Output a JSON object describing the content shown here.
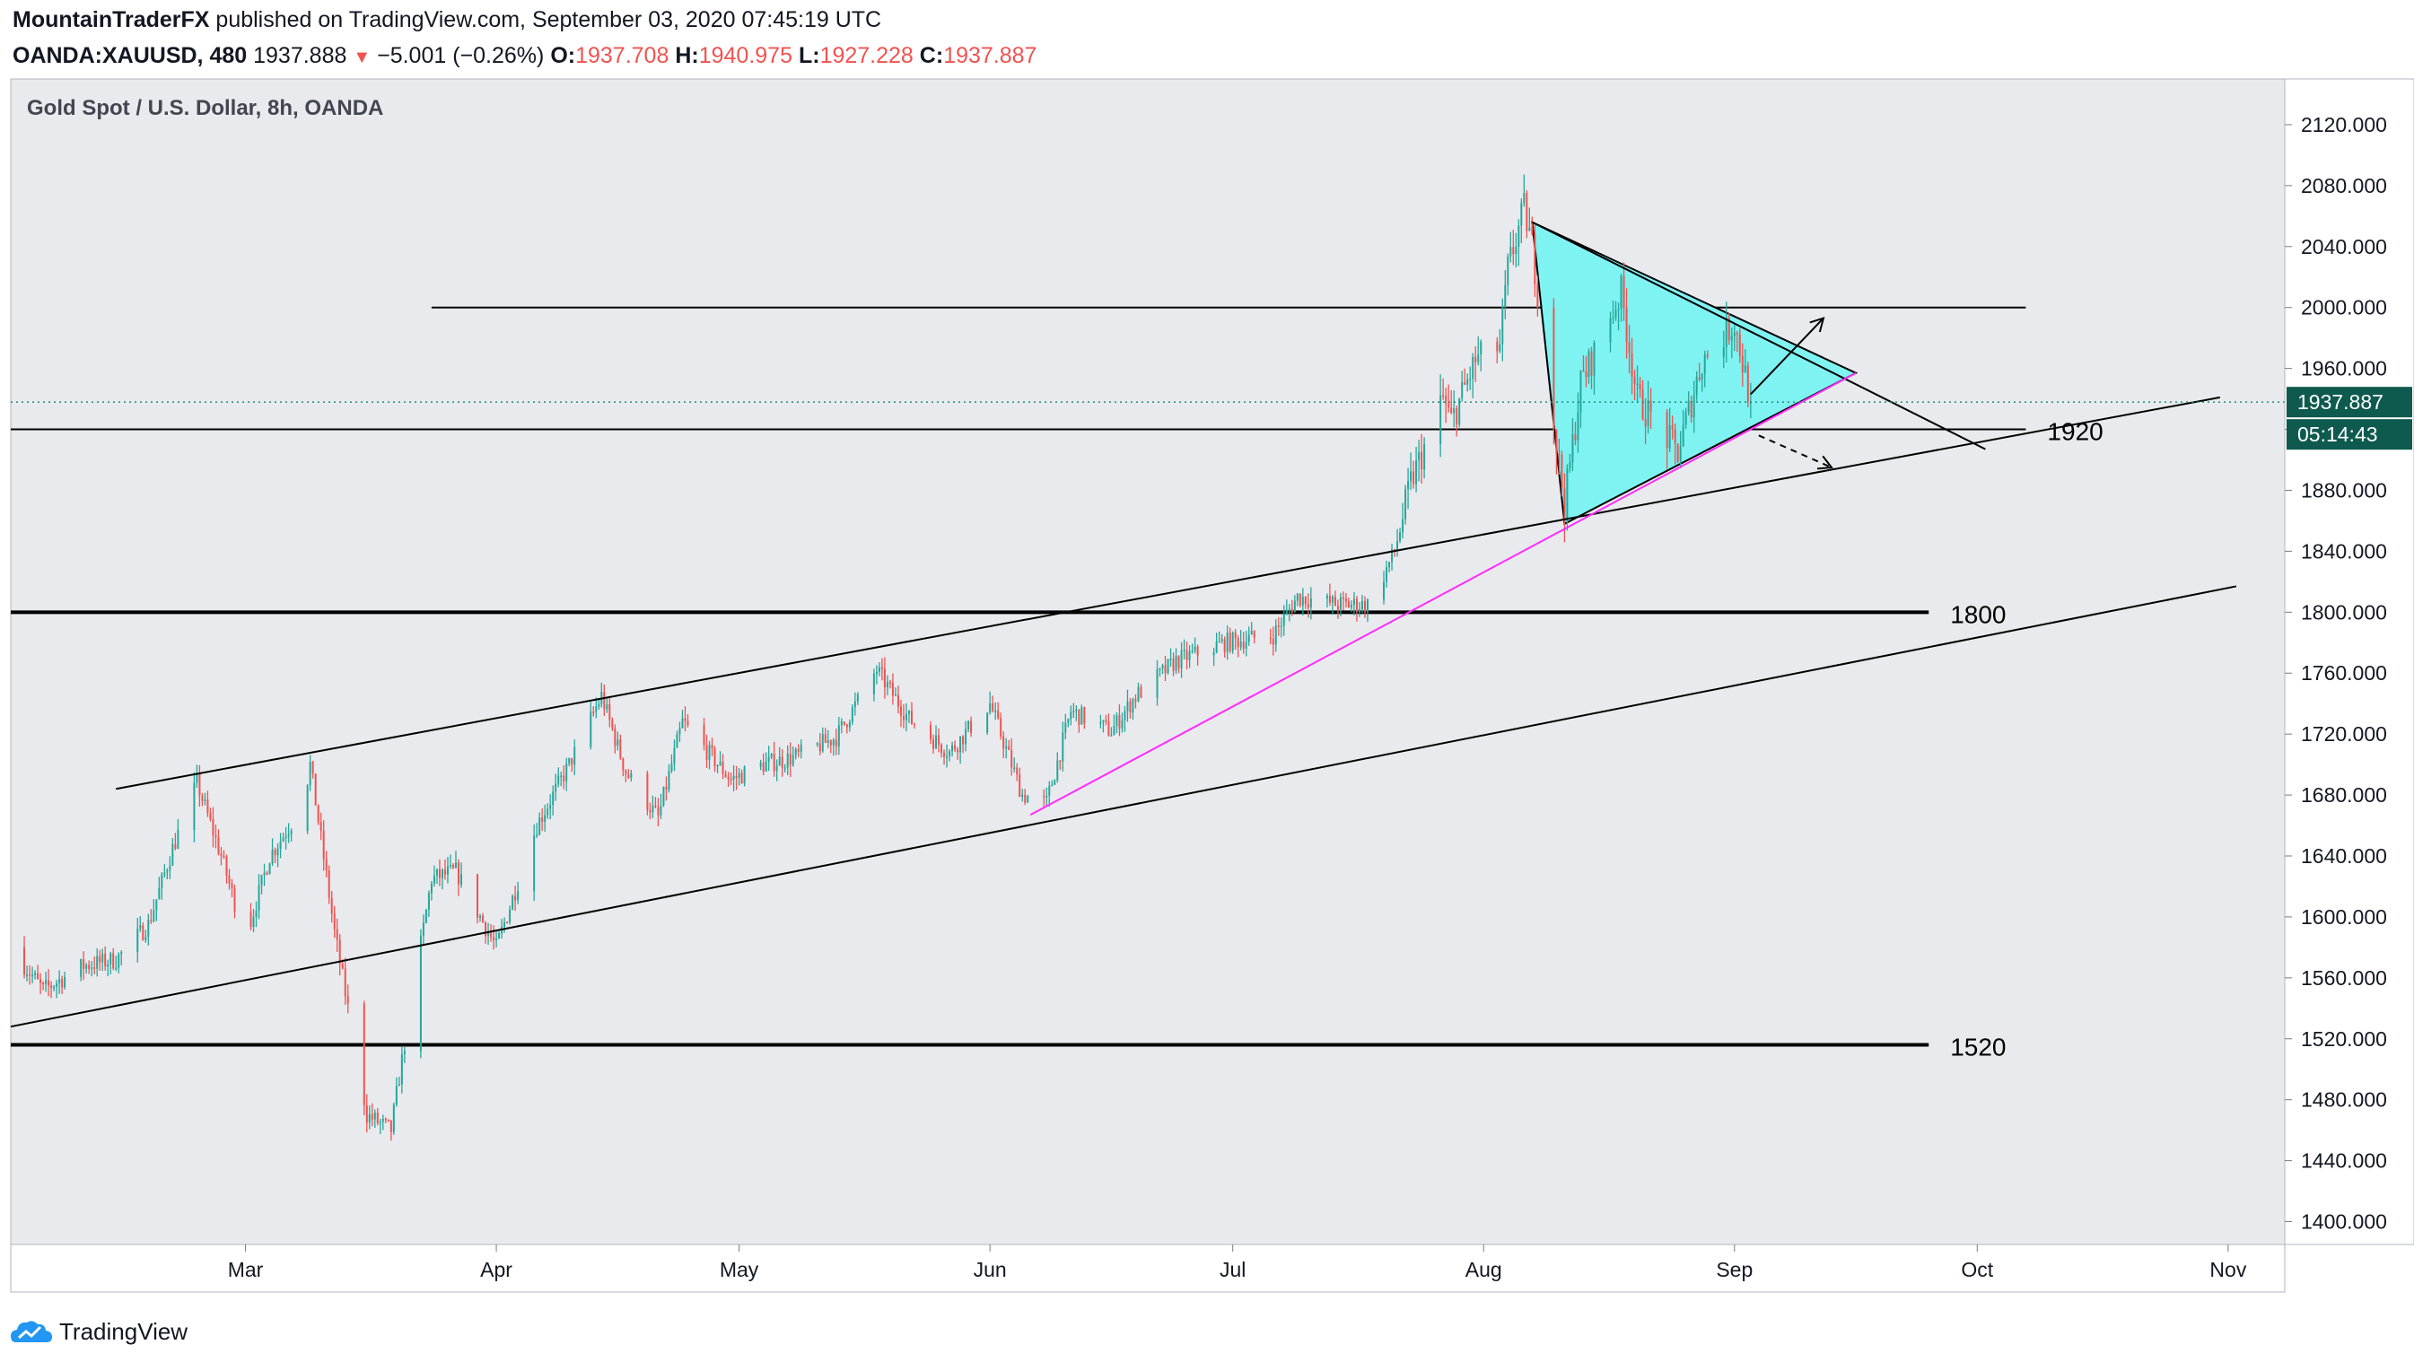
{
  "header": {
    "author": "MountainTraderFX",
    "published": " published on TradingView.com, September 03, 2020 07:45:19 UTC",
    "symbol": "OANDA:XAUUSD, 480",
    "price": "1937.888",
    "change": "−5.001 (−0.26%)",
    "o_label": "O:",
    "o_value": "1937.708",
    "h_label": "H:",
    "h_value": "1940.975",
    "l_label": "L:",
    "l_value": "1927.228",
    "c_label": "C:",
    "c_value": "1937.887"
  },
  "footer": {
    "brand": "TradingView"
  },
  "colors": {
    "up": "#26a69a",
    "down": "#ef5350",
    "pane": "#e9eaee",
    "wedge_fill": "#7ff3f2",
    "support_line": "#ff2bff",
    "price_tag": "#0e5a4e",
    "dotted_price": "#1f8a78"
  },
  "chart_data": {
    "type": "candlestick",
    "title": "Gold Spot / U.S. Dollar, 8h, OANDA",
    "y_axis": {
      "range": [
        1385,
        2150
      ],
      "ticks": [
        "2120.000",
        "2080.000",
        "2040.000",
        "2000.000",
        "1960.000",
        "1920.000",
        "1880.000",
        "1840.000",
        "1800.000",
        "1760.000",
        "1720.000",
        "1680.000",
        "1640.000",
        "1600.000",
        "1560.000",
        "1520.000",
        "1480.000",
        "1440.000",
        "1400.000"
      ]
    },
    "x_axis": {
      "range": [
        "2020-02-01",
        "2020-11-08"
      ],
      "ticks": [
        {
          "label": "Mar",
          "date": "2020-03-01"
        },
        {
          "label": "Apr",
          "date": "2020-04-01"
        },
        {
          "label": "May",
          "date": "2020-05-01"
        },
        {
          "label": "Jun",
          "date": "2020-06-01"
        },
        {
          "label": "Jul",
          "date": "2020-07-01"
        },
        {
          "label": "Aug",
          "date": "2020-08-01"
        },
        {
          "label": "Sep",
          "date": "2020-09-01"
        },
        {
          "label": "Oct",
          "date": "2020-10-01"
        },
        {
          "label": "Nov",
          "date": "2020-11-01"
        }
      ]
    },
    "last_price": {
      "value": 1937.887,
      "label": "1937.887",
      "countdown": "05:14:43"
    },
    "price_path": [
      [
        "2020-02-01",
        1580
      ],
      [
        "2020-02-05",
        1552
      ],
      [
        "2020-02-10",
        1568
      ],
      [
        "2020-02-14",
        1572
      ],
      [
        "2020-02-18",
        1595
      ],
      [
        "2020-02-21",
        1645
      ],
      [
        "2020-02-24",
        1688
      ],
      [
        "2020-02-27",
        1640
      ],
      [
        "2020-03-01",
        1585
      ],
      [
        "2020-03-04",
        1640
      ],
      [
        "2020-03-08",
        1672
      ],
      [
        "2020-03-09",
        1700
      ],
      [
        "2020-03-12",
        1590
      ],
      [
        "2020-03-16",
        1470
      ],
      [
        "2020-03-19",
        1460
      ],
      [
        "2020-03-20",
        1495
      ],
      [
        "2020-03-24",
        1625
      ],
      [
        "2020-03-27",
        1630
      ],
      [
        "2020-04-01",
        1580
      ],
      [
        "2020-04-06",
        1660
      ],
      [
        "2020-04-10",
        1700
      ],
      [
        "2020-04-14",
        1745
      ],
      [
        "2020-04-17",
        1695
      ],
      [
        "2020-04-21",
        1665
      ],
      [
        "2020-04-24",
        1728
      ],
      [
        "2020-04-30",
        1690
      ],
      [
        "2020-05-04",
        1700
      ],
      [
        "2020-05-08",
        1705
      ],
      [
        "2020-05-13",
        1718
      ],
      [
        "2020-05-18",
        1762
      ],
      [
        "2020-05-22",
        1730
      ],
      [
        "2020-05-27",
        1708
      ],
      [
        "2020-06-01",
        1740
      ],
      [
        "2020-06-05",
        1680
      ],
      [
        "2020-06-08",
        1675
      ],
      [
        "2020-06-11",
        1735
      ],
      [
        "2020-06-16",
        1722
      ],
      [
        "2020-06-19",
        1745
      ],
      [
        "2020-06-24",
        1768
      ],
      [
        "2020-06-30",
        1780
      ],
      [
        "2020-07-06",
        1785
      ],
      [
        "2020-07-09",
        1810
      ],
      [
        "2020-07-14",
        1805
      ],
      [
        "2020-07-18",
        1805
      ],
      [
        "2020-07-21",
        1840
      ],
      [
        "2020-07-23",
        1885
      ],
      [
        "2020-07-27",
        1940
      ],
      [
        "2020-07-28",
        1925
      ],
      [
        "2020-07-31",
        1965
      ],
      [
        "2020-08-03",
        1975
      ],
      [
        "2020-08-04",
        2025
      ],
      [
        "2020-08-06",
        2065
      ],
      [
        "2020-08-07",
        2040
      ],
      [
        "2020-08-10",
        1910
      ],
      [
        "2020-08-11",
        1870
      ],
      [
        "2020-08-13",
        1950
      ],
      [
        "2020-08-18",
        2010
      ],
      [
        "2020-08-20",
        1940
      ],
      [
        "2020-08-25",
        1905
      ],
      [
        "2020-08-28",
        1965
      ],
      [
        "2020-09-01",
        1990
      ],
      [
        "2020-09-03",
        1937.9
      ]
    ],
    "horizontal_levels": [
      {
        "value": 2000,
        "from": "2020-03-24",
        "to": "2020-10-07"
      },
      {
        "value": 1920,
        "from": "2020-02-01",
        "to": "2020-10-07",
        "label": "1920"
      },
      {
        "value": 1800,
        "from": "2020-02-01",
        "to": "2020-09-25",
        "label": "1800"
      },
      {
        "value": 1516,
        "from": "2020-02-01",
        "to": "2020-09-25",
        "label": "1520"
      }
    ],
    "trendlines": [
      {
        "name": "channel-upper",
        "from": [
          "2020-02-14",
          1684
        ],
        "to": [
          "2020-10-31",
          1941
        ]
      },
      {
        "name": "channel-lower",
        "from": [
          "2020-02-01",
          1528
        ],
        "to": [
          "2020-11-02",
          1817
        ]
      },
      {
        "name": "wedge-top-extended",
        "from": [
          "2020-08-07",
          2056
        ],
        "to": [
          "2020-10-02",
          1907
        ]
      },
      {
        "name": "rising-support",
        "from": [
          "2020-06-06",
          1667
        ],
        "to": [
          "2020-09-16",
          1957
        ]
      }
    ],
    "wedge": [
      [
        "2020-08-07",
        2056
      ],
      [
        "2020-09-16",
        1957
      ],
      [
        "2020-08-11",
        1858
      ]
    ],
    "arrows": [
      {
        "name": "bullish-arrow",
        "from": [
          "2020-09-03",
          1943
        ],
        "to": [
          "2020-09-12",
          1993
        ],
        "dashed": false
      },
      {
        "name": "bearish-arrow",
        "from": [
          "2020-09-04",
          1916
        ],
        "to": [
          "2020-09-13",
          1895
        ],
        "dashed": true
      }
    ]
  }
}
